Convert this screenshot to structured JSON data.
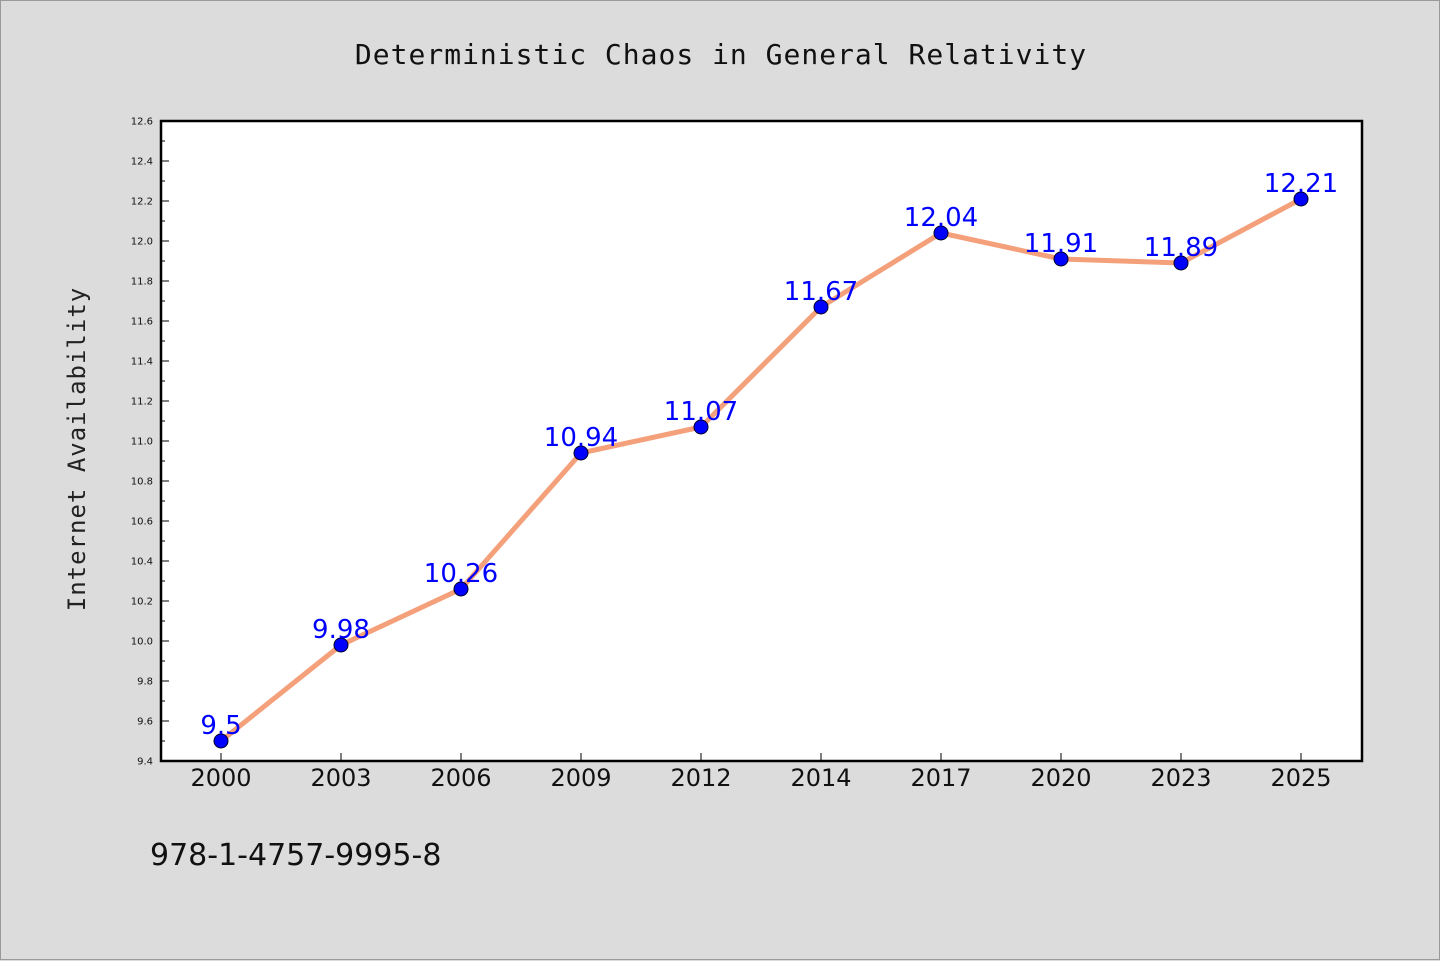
{
  "chart_data": {
    "type": "line",
    "title": "Deterministic Chaos in General Relativity",
    "xlabel": "",
    "ylabel": "Internet Availability",
    "categories": [
      "2000",
      "2003",
      "2006",
      "2009",
      "2012",
      "2014",
      "2017",
      "2020",
      "2023",
      "2025"
    ],
    "values": [
      9.5,
      9.98,
      10.26,
      10.94,
      11.07,
      11.67,
      12.04,
      11.91,
      11.89,
      12.21
    ],
    "data_labels": [
      "9.5",
      "9.98",
      "10.26",
      "10.94",
      "11.07",
      "11.67",
      "12.04",
      "11.91",
      "11.89",
      "12.21"
    ],
    "ylim": [
      9.4,
      12.6
    ],
    "yticks": [
      "9.4",
      "9.6",
      "9.8",
      "10.0",
      "10.2",
      "10.4",
      "10.6",
      "10.8",
      "11.0",
      "11.2",
      "11.4",
      "11.6",
      "11.8",
      "12.0",
      "12.2",
      "12.4",
      "12.6"
    ],
    "line_color": "#f4a07a",
    "marker_color": "#0000ff",
    "label_color": "#0000ff",
    "grid": false,
    "legend": "none"
  },
  "footer": {
    "isbn": "978-1-4757-9995-8"
  }
}
